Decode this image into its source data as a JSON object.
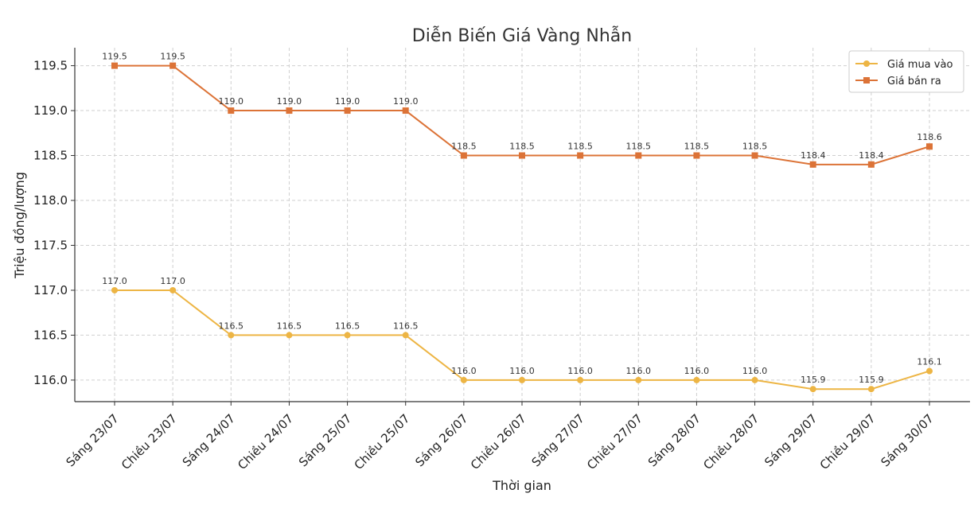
{
  "chart_data": {
    "type": "line",
    "title": "Diễn Biến Giá Vàng Nhẫn",
    "xlabel": "Thời gian",
    "ylabel": "Triệu đồng/lượng",
    "categories": [
      "Sáng 23/07",
      "Chiều 23/07",
      "Sáng 24/07",
      "Chiều 24/07",
      "Sáng 25/07",
      "Chiều 25/07",
      "Sáng 26/07",
      "Chiều 26/07",
      "Sáng 27/07",
      "Chiều 27/07",
      "Sáng 28/07",
      "Chiều 28/07",
      "Sáng 29/07",
      "Chiều 29/07",
      "Sáng 30/07"
    ],
    "series": [
      {
        "name": "Giá mua vào",
        "color": "#EDB544",
        "marker": "circle",
        "values": [
          117.0,
          117.0,
          116.5,
          116.5,
          116.5,
          116.5,
          116.0,
          116.0,
          116.0,
          116.0,
          116.0,
          116.0,
          115.9,
          115.9,
          116.1
        ],
        "labels": [
          "117.0",
          "117.0",
          "116.5",
          "116.5",
          "116.5",
          "116.5",
          "116.0",
          "116.0",
          "116.0",
          "116.0",
          "116.0",
          "116.0",
          "115.9",
          "115.9",
          "116.1"
        ]
      },
      {
        "name": "Giá bán ra",
        "color": "#DC7337",
        "marker": "square",
        "values": [
          119.5,
          119.5,
          119.0,
          119.0,
          119.0,
          119.0,
          118.5,
          118.5,
          118.5,
          118.5,
          118.5,
          118.5,
          118.4,
          118.4,
          118.6
        ],
        "labels": [
          "119.5",
          "119.5",
          "119.0",
          "119.0",
          "119.0",
          "119.0",
          "118.5",
          "118.5",
          "118.5",
          "118.5",
          "118.5",
          "118.5",
          "118.4",
          "118.4",
          "118.6"
        ]
      }
    ],
    "yticks": [
      116.0,
      116.5,
      117.0,
      117.5,
      118.0,
      118.5,
      119.0,
      119.5
    ],
    "ytick_labels": [
      "116.0",
      "116.5",
      "117.0",
      "117.5",
      "118.0",
      "118.5",
      "119.0",
      "119.5"
    ],
    "ylim": [
      115.76,
      119.7
    ],
    "grid": true,
    "legend_position": "top-right"
  }
}
